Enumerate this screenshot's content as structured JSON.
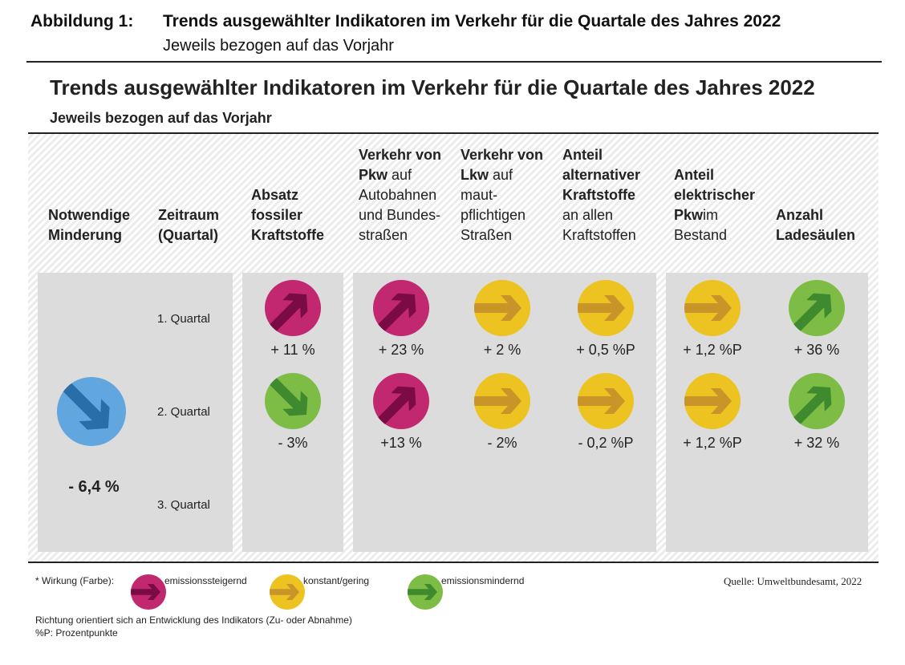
{
  "figure": {
    "label": "Abbildung 1:",
    "title": "Trends ausgewählter Indikatoren im Verkehr für die Quartale des Jahres 2022",
    "subtitle": "Jeweils bezogen auf das Vorjahr"
  },
  "chart_data": {
    "type": "table",
    "title": "Trends ausgewählter Indikatoren im Verkehr für die Quartale des Jahres 2022",
    "subtitle": "Jeweils bezogen auf das Vorjahr",
    "colors": {
      "emissionssteigernd": "#c1286f",
      "konstant": "#edc322",
      "emissionsmindernd": "#7dbd45",
      "target": "#62a6df"
    },
    "arrow_colors": {
      "emissionssteigernd": "#7a0b45",
      "konstant": "#c99528",
      "emissionsmindernd": "#3f8a2f",
      "target": "#2a6ea8"
    },
    "target": {
      "header": [
        "Notwendige",
        "Minderung"
      ],
      "value": "- 6,4 %",
      "effect": "target",
      "direction": "down"
    },
    "period_header": [
      "Zeitraum",
      "(Quartal)"
    ],
    "quarters": [
      "1. Quartal",
      "2. Quartal",
      "3. Quartal"
    ],
    "indicators": [
      {
        "header": [
          [
            "Absatz",
            1
          ],
          [
            "fossiler",
            1
          ],
          [
            "Kraftstoffe",
            1
          ]
        ],
        "cells": [
          {
            "value": "+ 11 %",
            "effect": "emissionssteigernd",
            "direction": "up"
          },
          {
            "value": "- 3%",
            "effect": "emissionsmindernd",
            "direction": "down"
          }
        ]
      },
      {
        "header": [
          [
            "Verkehr von",
            1
          ],
          [
            "Pkw",
            1,
            "auf"
          ],
          [
            "Autobahnen",
            0
          ],
          [
            "und Bundes-",
            0
          ],
          [
            "straßen",
            0
          ]
        ],
        "cells": [
          {
            "value": "+ 23 %",
            "effect": "emissionssteigernd",
            "direction": "up"
          },
          {
            "value": "+13 %",
            "effect": "emissionssteigernd",
            "direction": "up"
          }
        ]
      },
      {
        "header": [
          [
            "Verkehr von",
            1
          ],
          [
            "Lkw",
            1,
            "auf"
          ],
          [
            "maut-",
            0
          ],
          [
            "pflichtigen",
            0
          ],
          [
            "Straßen",
            0
          ]
        ],
        "cells": [
          {
            "value": "+ 2 %",
            "effect": "konstant",
            "direction": "right"
          },
          {
            "value": "- 2%",
            "effect": "konstant",
            "direction": "right"
          }
        ]
      },
      {
        "header": [
          [
            "Anteil",
            1
          ],
          [
            "alternativer",
            1
          ],
          [
            "Kraftstoffe",
            1
          ],
          [
            "an allen",
            0
          ],
          [
            "Kraftstoffen",
            0
          ]
        ],
        "cells": [
          {
            "value": "+ 0,5 %P",
            "effect": "konstant",
            "direction": "right"
          },
          {
            "value": "- 0,2 %P",
            "effect": "konstant",
            "direction": "right"
          }
        ]
      },
      {
        "header": [
          [
            "Anteil",
            1
          ],
          [
            "elektrischer",
            1
          ],
          [
            "Pkw",
            1,
            " im"
          ],
          [
            "Bestand",
            0
          ]
        ],
        "cells": [
          {
            "value": "+ 1,2 %P",
            "effect": "konstant",
            "direction": "right"
          },
          {
            "value": "+ 1,2 %P",
            "effect": "konstant",
            "direction": "right"
          }
        ]
      },
      {
        "header": [
          [
            "Anzahl",
            1
          ],
          [
            "Ladesäulen",
            1
          ]
        ],
        "cells": [
          {
            "value": "+ 36 %",
            "effect": "emissionsmindernd",
            "direction": "up"
          },
          {
            "value": "+ 32 %",
            "effect": "emissionsmindernd",
            "direction": "up"
          }
        ]
      }
    ]
  },
  "legend": {
    "title": "* Wirkung (Farbe):",
    "items": [
      {
        "label": "emissionssteigernd",
        "effect": "emissionssteigernd"
      },
      {
        "label": "konstant/gering",
        "effect": "konstant"
      },
      {
        "label": "emissionsmindernd",
        "effect": "emissionsmindernd"
      }
    ],
    "note1": "Richtung orientiert sich an Entwicklung des Indikators (Zu- oder Abnahme)",
    "note2": "%P: Prozentpunkte",
    "source": "Quelle: Umweltbundesamt, 2022"
  }
}
